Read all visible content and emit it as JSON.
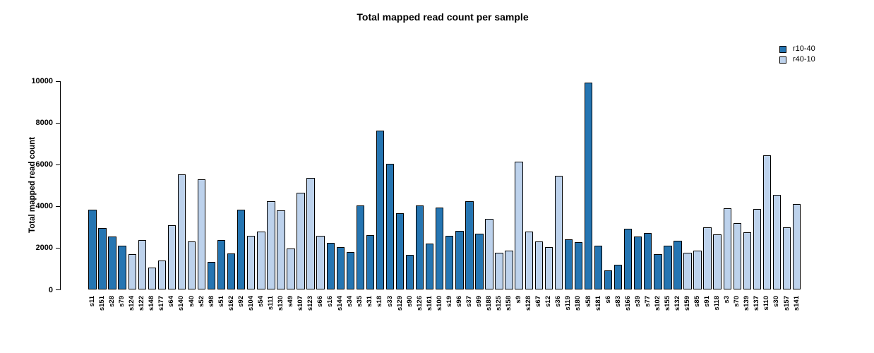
{
  "chart_data": {
    "type": "bar",
    "title": "Total mapped read count per sample",
    "xlabel": "",
    "ylabel": "Total mapped read count",
    "ylim": [
      0,
      10000
    ],
    "yticks": [
      0,
      2000,
      4000,
      6000,
      8000,
      10000
    ],
    "grid": false,
    "legend_position": "top-right",
    "groups": [
      {
        "name": "r10-40",
        "color": "#2575b2"
      },
      {
        "name": "r40-10",
        "color": "#bdd2ec"
      }
    ],
    "bars": [
      {
        "sample": "s11",
        "value": 3850,
        "group": "r10-40"
      },
      {
        "sample": "s151",
        "value": 2950,
        "group": "r10-40"
      },
      {
        "sample": "s28",
        "value": 2550,
        "group": "r10-40"
      },
      {
        "sample": "s79",
        "value": 2100,
        "group": "r10-40"
      },
      {
        "sample": "s124",
        "value": 1700,
        "group": "r40-10"
      },
      {
        "sample": "s122",
        "value": 2400,
        "group": "r40-10"
      },
      {
        "sample": "s148",
        "value": 1050,
        "group": "r40-10"
      },
      {
        "sample": "s177",
        "value": 1400,
        "group": "r40-10"
      },
      {
        "sample": "s64",
        "value": 3100,
        "group": "r40-10"
      },
      {
        "sample": "s140",
        "value": 5530,
        "group": "r40-10"
      },
      {
        "sample": "s40",
        "value": 2310,
        "group": "r40-10"
      },
      {
        "sample": "s52",
        "value": 5280,
        "group": "r40-10"
      },
      {
        "sample": "s98",
        "value": 1350,
        "group": "r10-40"
      },
      {
        "sample": "s51",
        "value": 2400,
        "group": "r10-40"
      },
      {
        "sample": "s162",
        "value": 1750,
        "group": "r10-40"
      },
      {
        "sample": "s92",
        "value": 3840,
        "group": "r10-40"
      },
      {
        "sample": "s104",
        "value": 2600,
        "group": "r40-10"
      },
      {
        "sample": "s54",
        "value": 2780,
        "group": "r40-10"
      },
      {
        "sample": "s111",
        "value": 4250,
        "group": "r40-10"
      },
      {
        "sample": "s130",
        "value": 3800,
        "group": "r40-10"
      },
      {
        "sample": "s49",
        "value": 1980,
        "group": "r40-10"
      },
      {
        "sample": "s107",
        "value": 4640,
        "group": "r40-10"
      },
      {
        "sample": "s123",
        "value": 5380,
        "group": "r40-10"
      },
      {
        "sample": "s66",
        "value": 2600,
        "group": "r40-10"
      },
      {
        "sample": "s16",
        "value": 2250,
        "group": "r10-40"
      },
      {
        "sample": "s144",
        "value": 2050,
        "group": "r10-40"
      },
      {
        "sample": "s34",
        "value": 1800,
        "group": "r10-40"
      },
      {
        "sample": "s35",
        "value": 4060,
        "group": "r10-40"
      },
      {
        "sample": "s31",
        "value": 2620,
        "group": "r10-40"
      },
      {
        "sample": "s18",
        "value": 7640,
        "group": "r10-40"
      },
      {
        "sample": "s33",
        "value": 6030,
        "group": "r10-40"
      },
      {
        "sample": "s129",
        "value": 3680,
        "group": "r10-40"
      },
      {
        "sample": "s90",
        "value": 1660,
        "group": "r10-40"
      },
      {
        "sample": "s126",
        "value": 4060,
        "group": "r10-40"
      },
      {
        "sample": "s161",
        "value": 2210,
        "group": "r10-40"
      },
      {
        "sample": "s100",
        "value": 3950,
        "group": "r10-40"
      },
      {
        "sample": "s19",
        "value": 2600,
        "group": "r10-40"
      },
      {
        "sample": "s96",
        "value": 2820,
        "group": "r10-40"
      },
      {
        "sample": "s37",
        "value": 4250,
        "group": "r10-40"
      },
      {
        "sample": "s99",
        "value": 2690,
        "group": "r10-40"
      },
      {
        "sample": "s188",
        "value": 3400,
        "group": "r40-10"
      },
      {
        "sample": "s125",
        "value": 1780,
        "group": "r40-10"
      },
      {
        "sample": "s158",
        "value": 1870,
        "group": "r40-10"
      },
      {
        "sample": "s9",
        "value": 6150,
        "group": "r40-10"
      },
      {
        "sample": "s128",
        "value": 2800,
        "group": "r40-10"
      },
      {
        "sample": "s67",
        "value": 2320,
        "group": "r40-10"
      },
      {
        "sample": "s12",
        "value": 2060,
        "group": "r40-10"
      },
      {
        "sample": "s36",
        "value": 5470,
        "group": "r40-10"
      },
      {
        "sample": "s119",
        "value": 2420,
        "group": "r10-40"
      },
      {
        "sample": "s180",
        "value": 2290,
        "group": "r10-40"
      },
      {
        "sample": "s58",
        "value": 9930,
        "group": "r10-40"
      },
      {
        "sample": "s181",
        "value": 2110,
        "group": "r10-40"
      },
      {
        "sample": "s6",
        "value": 930,
        "group": "r10-40"
      },
      {
        "sample": "s83",
        "value": 1210,
        "group": "r10-40"
      },
      {
        "sample": "s166",
        "value": 2930,
        "group": "r10-40"
      },
      {
        "sample": "s39",
        "value": 2570,
        "group": "r10-40"
      },
      {
        "sample": "s77",
        "value": 2730,
        "group": "r10-40"
      },
      {
        "sample": "s102",
        "value": 1710,
        "group": "r10-40"
      },
      {
        "sample": "s155",
        "value": 2110,
        "group": "r10-40"
      },
      {
        "sample": "s132",
        "value": 2340,
        "group": "r10-40"
      },
      {
        "sample": "s159",
        "value": 1760,
        "group": "r40-10"
      },
      {
        "sample": "s85",
        "value": 1870,
        "group": "r40-10"
      },
      {
        "sample": "s91",
        "value": 2990,
        "group": "r40-10"
      },
      {
        "sample": "s118",
        "value": 2660,
        "group": "r40-10"
      },
      {
        "sample": "s3",
        "value": 3900,
        "group": "r40-10"
      },
      {
        "sample": "s70",
        "value": 3200,
        "group": "r40-10"
      },
      {
        "sample": "s139",
        "value": 2750,
        "group": "r40-10"
      },
      {
        "sample": "s137",
        "value": 3870,
        "group": "r40-10"
      },
      {
        "sample": "s110",
        "value": 6460,
        "group": "r40-10"
      },
      {
        "sample": "s30",
        "value": 4550,
        "group": "r40-10"
      },
      {
        "sample": "s157",
        "value": 3000,
        "group": "r40-10"
      },
      {
        "sample": "s141",
        "value": 4110,
        "group": "r40-10"
      }
    ]
  }
}
